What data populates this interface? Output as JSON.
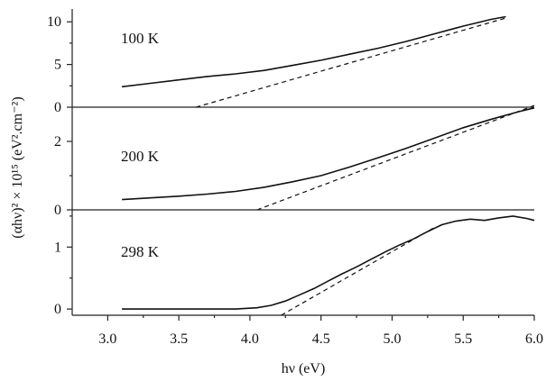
{
  "chart_data": {
    "type": "line",
    "xlabel": "hν (eV)",
    "ylabel": "(αhν)² × 10¹⁵ (eV².cm⁻²)",
    "xlim": [
      2.75,
      6.0
    ],
    "x_ticks": [
      "3.0",
      "3.5",
      "4.0",
      "4.5",
      "5.0",
      "5.5",
      "6.0"
    ],
    "panels": [
      {
        "label": "100 K",
        "ylim": [
          0,
          11.5
        ],
        "y_ticks": [
          "0",
          "5",
          "10"
        ],
        "y_tick_values": [
          0,
          5,
          10
        ],
        "series": [
          {
            "style": "solid",
            "x": [
              3.1,
              3.3,
              3.5,
              3.7,
              3.9,
              4.1,
              4.3,
              4.5,
              4.7,
              4.9,
              5.1,
              5.3,
              5.5,
              5.7,
              5.8
            ],
            "y": [
              2.4,
              2.8,
              3.2,
              3.6,
              3.9,
              4.3,
              4.9,
              5.5,
              6.2,
              6.9,
              7.7,
              8.6,
              9.5,
              10.3,
              10.6
            ]
          },
          {
            "style": "dashed",
            "x": [
              3.62,
              5.8
            ],
            "y": [
              0.0,
              10.45
            ]
          }
        ]
      },
      {
        "label": "200 K",
        "ylim": [
          0,
          3.0
        ],
        "y_ticks": [
          "0",
          "2"
        ],
        "y_tick_values": [
          0,
          2
        ],
        "series": [
          {
            "style": "solid",
            "x": [
              3.1,
              3.3,
              3.5,
              3.7,
              3.9,
              4.1,
              4.3,
              4.5,
              4.7,
              4.9,
              5.1,
              5.3,
              5.5,
              5.7,
              5.9,
              6.0
            ],
            "y": [
              0.3,
              0.35,
              0.4,
              0.46,
              0.54,
              0.66,
              0.82,
              1.0,
              1.25,
              1.52,
              1.8,
              2.1,
              2.4,
              2.65,
              2.88,
              2.98
            ]
          },
          {
            "style": "dashed",
            "x": [
              4.05,
              6.0
            ],
            "y": [
              0.0,
              3.05
            ]
          }
        ]
      },
      {
        "label": "298 K",
        "ylim": [
          -0.1,
          1.6
        ],
        "y_ticks": [
          "0",
          "1"
        ],
        "y_tick_values": [
          0,
          1
        ],
        "series": [
          {
            "style": "solid",
            "x": [
              3.1,
              3.5,
              3.9,
              4.05,
              4.15,
              4.25,
              4.35,
              4.45,
              4.55,
              4.65,
              4.75,
              4.85,
              4.95,
              5.05,
              5.15,
              5.25,
              5.35,
              5.45,
              5.55,
              5.65,
              5.75,
              5.85,
              5.95,
              6.0
            ],
            "y": [
              0.0,
              0.0,
              0.0,
              0.02,
              0.06,
              0.13,
              0.23,
              0.33,
              0.45,
              0.57,
              0.68,
              0.8,
              0.92,
              1.03,
              1.13,
              1.25,
              1.36,
              1.42,
              1.45,
              1.43,
              1.47,
              1.5,
              1.46,
              1.43
            ]
          },
          {
            "style": "dashed",
            "x": [
              4.22,
              5.3
            ],
            "y": [
              -0.1,
              1.32
            ]
          }
        ]
      }
    ]
  }
}
